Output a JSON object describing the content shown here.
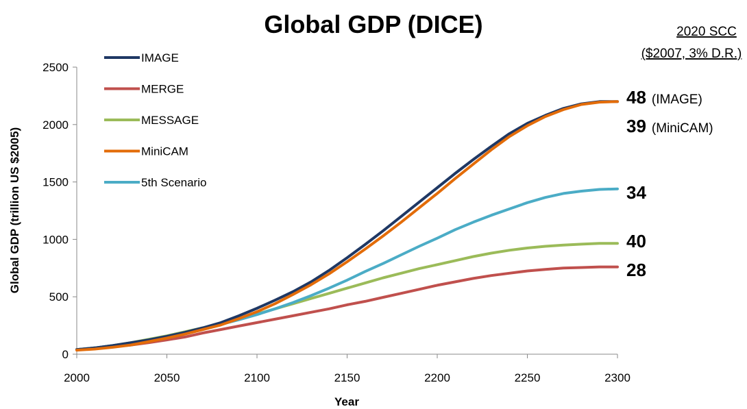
{
  "chart_data": {
    "type": "line",
    "title": "Global GDP (DICE)",
    "xlabel": "Year",
    "ylabel": "Global GDP (trillion US $2005)",
    "xlim": [
      2000,
      2300
    ],
    "ylim": [
      0,
      2500
    ],
    "xticks": [
      "2000",
      "2050",
      "2100",
      "2150",
      "2200",
      "2250",
      "2300"
    ],
    "yticks": [
      "0",
      "500",
      "1000",
      "1500",
      "2000",
      "2500"
    ],
    "grid": false,
    "legend_position": "top-left",
    "x": [
      2000,
      2010,
      2020,
      2030,
      2040,
      2050,
      2060,
      2070,
      2080,
      2090,
      2100,
      2110,
      2120,
      2130,
      2140,
      2150,
      2160,
      2170,
      2180,
      2190,
      2200,
      2210,
      2220,
      2230,
      2240,
      2250,
      2260,
      2270,
      2280,
      2290,
      2300
    ],
    "series": [
      {
        "name": "IMAGE",
        "color": "#1f3864",
        "values": [
          40,
          55,
          75,
          100,
          125,
          155,
          190,
          230,
          275,
          335,
          400,
          470,
          545,
          630,
          730,
          840,
          955,
          1075,
          1200,
          1325,
          1450,
          1575,
          1695,
          1810,
          1920,
          2010,
          2080,
          2140,
          2180,
          2200,
          2200
        ]
      },
      {
        "name": "MERGE",
        "color": "#c0504d",
        "values": [
          40,
          50,
          65,
          80,
          100,
          125,
          150,
          185,
          215,
          245,
          275,
          305,
          335,
          365,
          395,
          430,
          460,
          495,
          530,
          565,
          600,
          630,
          660,
          685,
          705,
          725,
          738,
          750,
          755,
          760,
          760
        ]
      },
      {
        "name": "MESSAGE",
        "color": "#9bbb59",
        "values": [
          40,
          55,
          75,
          100,
          130,
          160,
          195,
          230,
          270,
          310,
          350,
          395,
          440,
          485,
          530,
          575,
          620,
          665,
          705,
          745,
          780,
          815,
          850,
          880,
          905,
          925,
          940,
          950,
          958,
          965,
          965
        ]
      },
      {
        "name": "MiniCAM",
        "color": "#e36c09",
        "values": [
          35,
          45,
          60,
          80,
          110,
          140,
          175,
          215,
          255,
          310,
          370,
          440,
          520,
          605,
          700,
          805,
          915,
          1030,
          1150,
          1275,
          1400,
          1530,
          1655,
          1780,
          1895,
          1990,
          2070,
          2130,
          2175,
          2195,
          2200
        ]
      },
      {
        "name": "5th Scenario",
        "color": "#4bacc6",
        "values": [
          40,
          55,
          75,
          95,
          125,
          155,
          190,
          225,
          260,
          300,
          345,
          395,
          450,
          510,
          575,
          645,
          720,
          790,
          865,
          940,
          1010,
          1085,
          1150,
          1210,
          1265,
          1320,
          1365,
          1400,
          1420,
          1435,
          1440
        ]
      }
    ]
  },
  "scc": {
    "header_line1": "2020 SCC",
    "header_line2": "($2007, 3% D.R.)",
    "entries": [
      {
        "value": "48",
        "label": "(IMAGE)"
      },
      {
        "value": "39",
        "label": "(MiniCAM)"
      },
      {
        "value": "34",
        "label": ""
      },
      {
        "value": "40",
        "label": ""
      },
      {
        "value": "28",
        "label": ""
      }
    ]
  }
}
